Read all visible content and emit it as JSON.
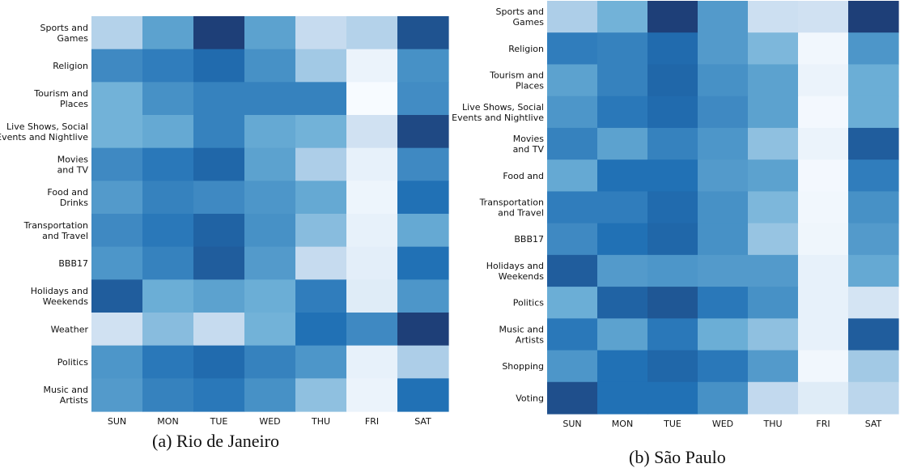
{
  "chart_data": [
    {
      "type": "heatmap",
      "caption": "(a) Rio de Janeiro",
      "x_categories": [
        "SUN",
        "MON",
        "TUE",
        "WED",
        "THU",
        "FRI",
        "SAT"
      ],
      "y_categories": [
        [
          "Sports and",
          "Games"
        ],
        [
          "Religion"
        ],
        [
          "Tourism and",
          "Places"
        ],
        [
          "Live Shows, Social",
          "Events and Nightlive"
        ],
        [
          "Movies",
          "and TV"
        ],
        [
          "Food and",
          "Drinks"
        ],
        [
          "Transportation",
          "and Travel"
        ],
        [
          "BBB17"
        ],
        [
          "Holidays and",
          "Weekends"
        ],
        [
          "Weather"
        ],
        [
          "Politics"
        ],
        [
          "Music and",
          "Artists"
        ]
      ],
      "values": [
        [
          0.3,
          0.55,
          1.0,
          0.55,
          0.25,
          0.3,
          0.9
        ],
        [
          0.65,
          0.7,
          0.78,
          0.62,
          0.35,
          0.06,
          0.62
        ],
        [
          0.48,
          0.62,
          0.68,
          0.68,
          0.68,
          0.0,
          0.64
        ],
        [
          0.48,
          0.52,
          0.68,
          0.52,
          0.48,
          0.2,
          0.95
        ],
        [
          0.65,
          0.72,
          0.8,
          0.55,
          0.32,
          0.08,
          0.65
        ],
        [
          0.58,
          0.68,
          0.65,
          0.6,
          0.52,
          0.05,
          0.75
        ],
        [
          0.65,
          0.72,
          0.82,
          0.62,
          0.42,
          0.08,
          0.52
        ],
        [
          0.6,
          0.68,
          0.85,
          0.58,
          0.25,
          0.1,
          0.75
        ],
        [
          0.85,
          0.5,
          0.55,
          0.5,
          0.7,
          0.12,
          0.6
        ],
        [
          0.2,
          0.42,
          0.25,
          0.48,
          0.75,
          0.65,
          1.0
        ],
        [
          0.6,
          0.72,
          0.78,
          0.68,
          0.6,
          0.08,
          0.32
        ],
        [
          0.58,
          0.68,
          0.72,
          0.62,
          0.4,
          0.06,
          0.75
        ]
      ],
      "colormap": [
        "#f7fbff",
        "#c6dbef",
        "#6baed6",
        "#2171b5",
        "#1e3f78"
      ]
    },
    {
      "type": "heatmap",
      "caption": "(b) São Paulo",
      "x_categories": [
        "SUN",
        "MON",
        "TUE",
        "WED",
        "THU",
        "FRI",
        "SAT"
      ],
      "y_categories": [
        [
          "Sports and",
          "Games"
        ],
        [
          "Religion"
        ],
        [
          "Tourism and",
          "Places"
        ],
        [
          "Live Shows, Social",
          "Events and Nightlive"
        ],
        [
          "Movies",
          "and TV"
        ],
        [
          "Food and"
        ],
        [
          "Transportation",
          "and Travel"
        ],
        [
          "BBB17"
        ],
        [
          "Holidays and",
          "Weekends"
        ],
        [
          "Politics"
        ],
        [
          "Music and",
          "Artists"
        ],
        [
          "Shopping"
        ],
        [
          "Voting"
        ]
      ],
      "values": [
        [
          0.32,
          0.48,
          1.0,
          0.58,
          0.22,
          0.2,
          1.0
        ],
        [
          0.7,
          0.68,
          0.78,
          0.58,
          0.45,
          0.03,
          0.6
        ],
        [
          0.55,
          0.68,
          0.8,
          0.62,
          0.55,
          0.06,
          0.5
        ],
        [
          0.6,
          0.72,
          0.78,
          0.65,
          0.55,
          0.02,
          0.5
        ],
        [
          0.68,
          0.55,
          0.68,
          0.6,
          0.4,
          0.06,
          0.85
        ],
        [
          0.52,
          0.75,
          0.75,
          0.58,
          0.55,
          0.02,
          0.7
        ],
        [
          0.7,
          0.7,
          0.78,
          0.62,
          0.45,
          0.03,
          0.62
        ],
        [
          0.65,
          0.75,
          0.8,
          0.62,
          0.38,
          0.04,
          0.58
        ],
        [
          0.85,
          0.58,
          0.6,
          0.58,
          0.58,
          0.08,
          0.52
        ],
        [
          0.5,
          0.82,
          0.88,
          0.72,
          0.62,
          0.08,
          0.18
        ],
        [
          0.72,
          0.55,
          0.72,
          0.5,
          0.4,
          0.08,
          0.85
        ],
        [
          0.6,
          0.75,
          0.8,
          0.72,
          0.58,
          0.03,
          0.35
        ],
        [
          0.92,
          0.75,
          0.75,
          0.62,
          0.26,
          0.12,
          0.28
        ]
      ],
      "colormap": [
        "#f7fbff",
        "#c6dbef",
        "#6baed6",
        "#2171b5",
        "#1e3f78"
      ]
    }
  ]
}
